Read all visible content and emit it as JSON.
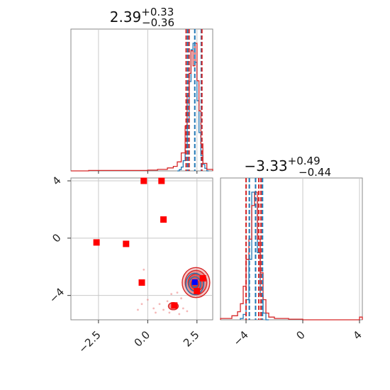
{
  "chart_data": [
    {
      "type": "histogram",
      "panel": "marginal-x",
      "title": "2.39",
      "title_sup": "+0.33",
      "title_sub": "−0.36",
      "xlim": [
        -3.9,
        3.3
      ],
      "grid": true,
      "series": [
        {
          "color": "#1f77b4",
          "bin_edges": [
            1.5,
            1.6,
            1.7,
            1.8,
            1.9,
            2.0,
            2.1,
            2.2,
            2.3,
            2.4,
            2.5,
            2.6,
            2.7,
            2.8,
            2.9,
            3.0,
            3.1
          ],
          "counts": [
            0,
            0.01,
            0.03,
            0.08,
            0.18,
            0.4,
            0.7,
            0.95,
            1.0,
            0.85,
            0.55,
            0.3,
            0.12,
            0.05,
            0.02,
            0
          ]
        },
        {
          "color": "#d62728",
          "bin_edges": [
            -3.9,
            -3.0,
            -2.0,
            -1.0,
            0.0,
            0.5,
            1.0,
            1.3,
            1.5,
            1.7,
            1.9,
            2.0,
            2.1,
            2.2,
            2.3,
            2.4,
            2.5,
            2.6,
            2.7,
            2.8,
            3.0,
            3.3
          ],
          "counts": [
            0,
            0.003,
            0.003,
            0.003,
            0.005,
            0.01,
            0.02,
            0.03,
            0.06,
            0.12,
            0.3,
            0.5,
            0.65,
            0.8,
            0.7,
            0.85,
            0.6,
            0.4,
            0.18,
            0.05,
            0.01
          ]
        }
      ],
      "quantile_lines": [
        {
          "color": "#1f77b4",
          "values": [
            2.03,
            2.39,
            2.72
          ]
        },
        {
          "color": "#d62728",
          "values": [
            1.95,
            2.1,
            2.75
          ]
        }
      ]
    },
    {
      "type": "histogram",
      "panel": "marginal-y",
      "title": "−3.33",
      "title_sup": "+0.49",
      "title_sub": "−0.44",
      "xlim": [
        -5.8,
        4.2
      ],
      "xticks": [
        -4,
        0,
        4
      ],
      "xtick_labels": [
        "−4",
        "0",
        "4"
      ],
      "grid": true,
      "series": [
        {
          "color": "#1f77b4",
          "bin_edges": [
            -4.4,
            -4.2,
            -4.0,
            -3.8,
            -3.6,
            -3.4,
            -3.2,
            -3.0,
            -2.8,
            -2.6,
            -2.4
          ],
          "counts": [
            0.01,
            0.04,
            0.15,
            0.45,
            0.95,
            0.9,
            0.5,
            0.18,
            0.05,
            0
          ]
        },
        {
          "color": "#d62728",
          "bin_edges": [
            -5.8,
            -5.0,
            -4.6,
            -4.4,
            -4.2,
            -4.0,
            -3.8,
            -3.6,
            -3.4,
            -3.2,
            -3.0,
            -2.8,
            -2.6,
            -2.4,
            -2.0,
            -1.0,
            0.0,
            4.0,
            4.2
          ],
          "counts": [
            0.01,
            0.03,
            0.06,
            0.12,
            0.25,
            0.45,
            0.6,
            0.85,
            0.95,
            0.6,
            0.35,
            0.15,
            0.05,
            0.02,
            0.01,
            0.005,
            0,
            0.02
          ]
        }
      ],
      "quantile_lines": [
        {
          "color": "#1f77b4",
          "values": [
            -3.77,
            -3.33,
            -2.84
          ]
        },
        {
          "color": "#d62728",
          "values": [
            -4.0,
            -3.1,
            -2.95
          ]
        }
      ]
    },
    {
      "type": "scatter",
      "panel": "joint",
      "xlim": [
        -3.9,
        3.3
      ],
      "ylim": [
        -5.7,
        4.2
      ],
      "xticks": [
        -2.5,
        0.0,
        2.5
      ],
      "xtick_labels": [
        "−2.5",
        "0.0",
        "2.5"
      ],
      "yticks": [
        -4,
        0,
        4
      ],
      "ytick_labels": [
        "−4",
        "0",
        "4"
      ],
      "grid": true,
      "red_points": [
        {
          "x": -0.2,
          "y": 4.0
        },
        {
          "x": 0.7,
          "y": 4.0
        },
        {
          "x": 0.8,
          "y": 1.3
        },
        {
          "x": -2.6,
          "y": -0.3
        },
        {
          "x": -1.1,
          "y": -0.4
        },
        {
          "x": -0.3,
          "y": -3.1
        },
        {
          "x": 1.35,
          "y": -4.7
        },
        {
          "x": 2.8,
          "y": -2.8
        },
        {
          "x": 2.5,
          "y": -3.7
        }
      ],
      "blue_point": {
        "x": 2.39,
        "y": -3.07
      },
      "red_contours": [
        {
          "cx": 2.45,
          "cy": -3.1,
          "rx": 0.7,
          "ry": 1.05,
          "alpha": 0.25
        },
        {
          "cx": 2.45,
          "cy": -3.1,
          "rx": 0.55,
          "ry": 0.85,
          "alpha": 0.35
        },
        {
          "cx": 2.45,
          "cy": -3.1,
          "rx": 0.4,
          "ry": 0.6,
          "alpha": 0.5
        },
        {
          "cx": 2.4,
          "cy": -3.2,
          "rx": 0.2,
          "ry": 0.3,
          "alpha": 0.8
        },
        {
          "cx": 1.3,
          "cy": -4.75,
          "rx": 0.25,
          "ry": 0.25,
          "alpha": 0.5
        }
      ],
      "blue_contours": [
        {
          "cx": 2.39,
          "cy": -3.2,
          "rx": 0.45,
          "ry": 0.75
        },
        {
          "cx": 2.39,
          "cy": -3.2,
          "rx": 0.3,
          "ry": 0.5
        },
        {
          "cx": 2.39,
          "cy": -3.2,
          "rx": 0.15,
          "ry": 0.25
        }
      ],
      "faint_red_scatter": [
        {
          "x": -0.2,
          "y": -2.2
        },
        {
          "x": -0.3,
          "y": -4.6
        },
        {
          "x": 0.3,
          "y": -4.9
        },
        {
          "x": 0.6,
          "y": -4.6
        },
        {
          "x": 0.8,
          "y": -5.0
        },
        {
          "x": 1.0,
          "y": -4.4
        },
        {
          "x": 1.1,
          "y": -5.2
        },
        {
          "x": 1.6,
          "y": -5.3
        },
        {
          "x": 1.8,
          "y": -4.9
        },
        {
          "x": 1.5,
          "y": -3.8
        },
        {
          "x": 1.7,
          "y": -4.2
        },
        {
          "x": 0.0,
          "y": -4.3
        },
        {
          "x": 0.4,
          "y": -5.2
        },
        {
          "x": 2.0,
          "y": -5.1
        },
        {
          "x": -0.5,
          "y": -5.0
        },
        {
          "x": 1.2,
          "y": -3.9
        }
      ]
    }
  ]
}
